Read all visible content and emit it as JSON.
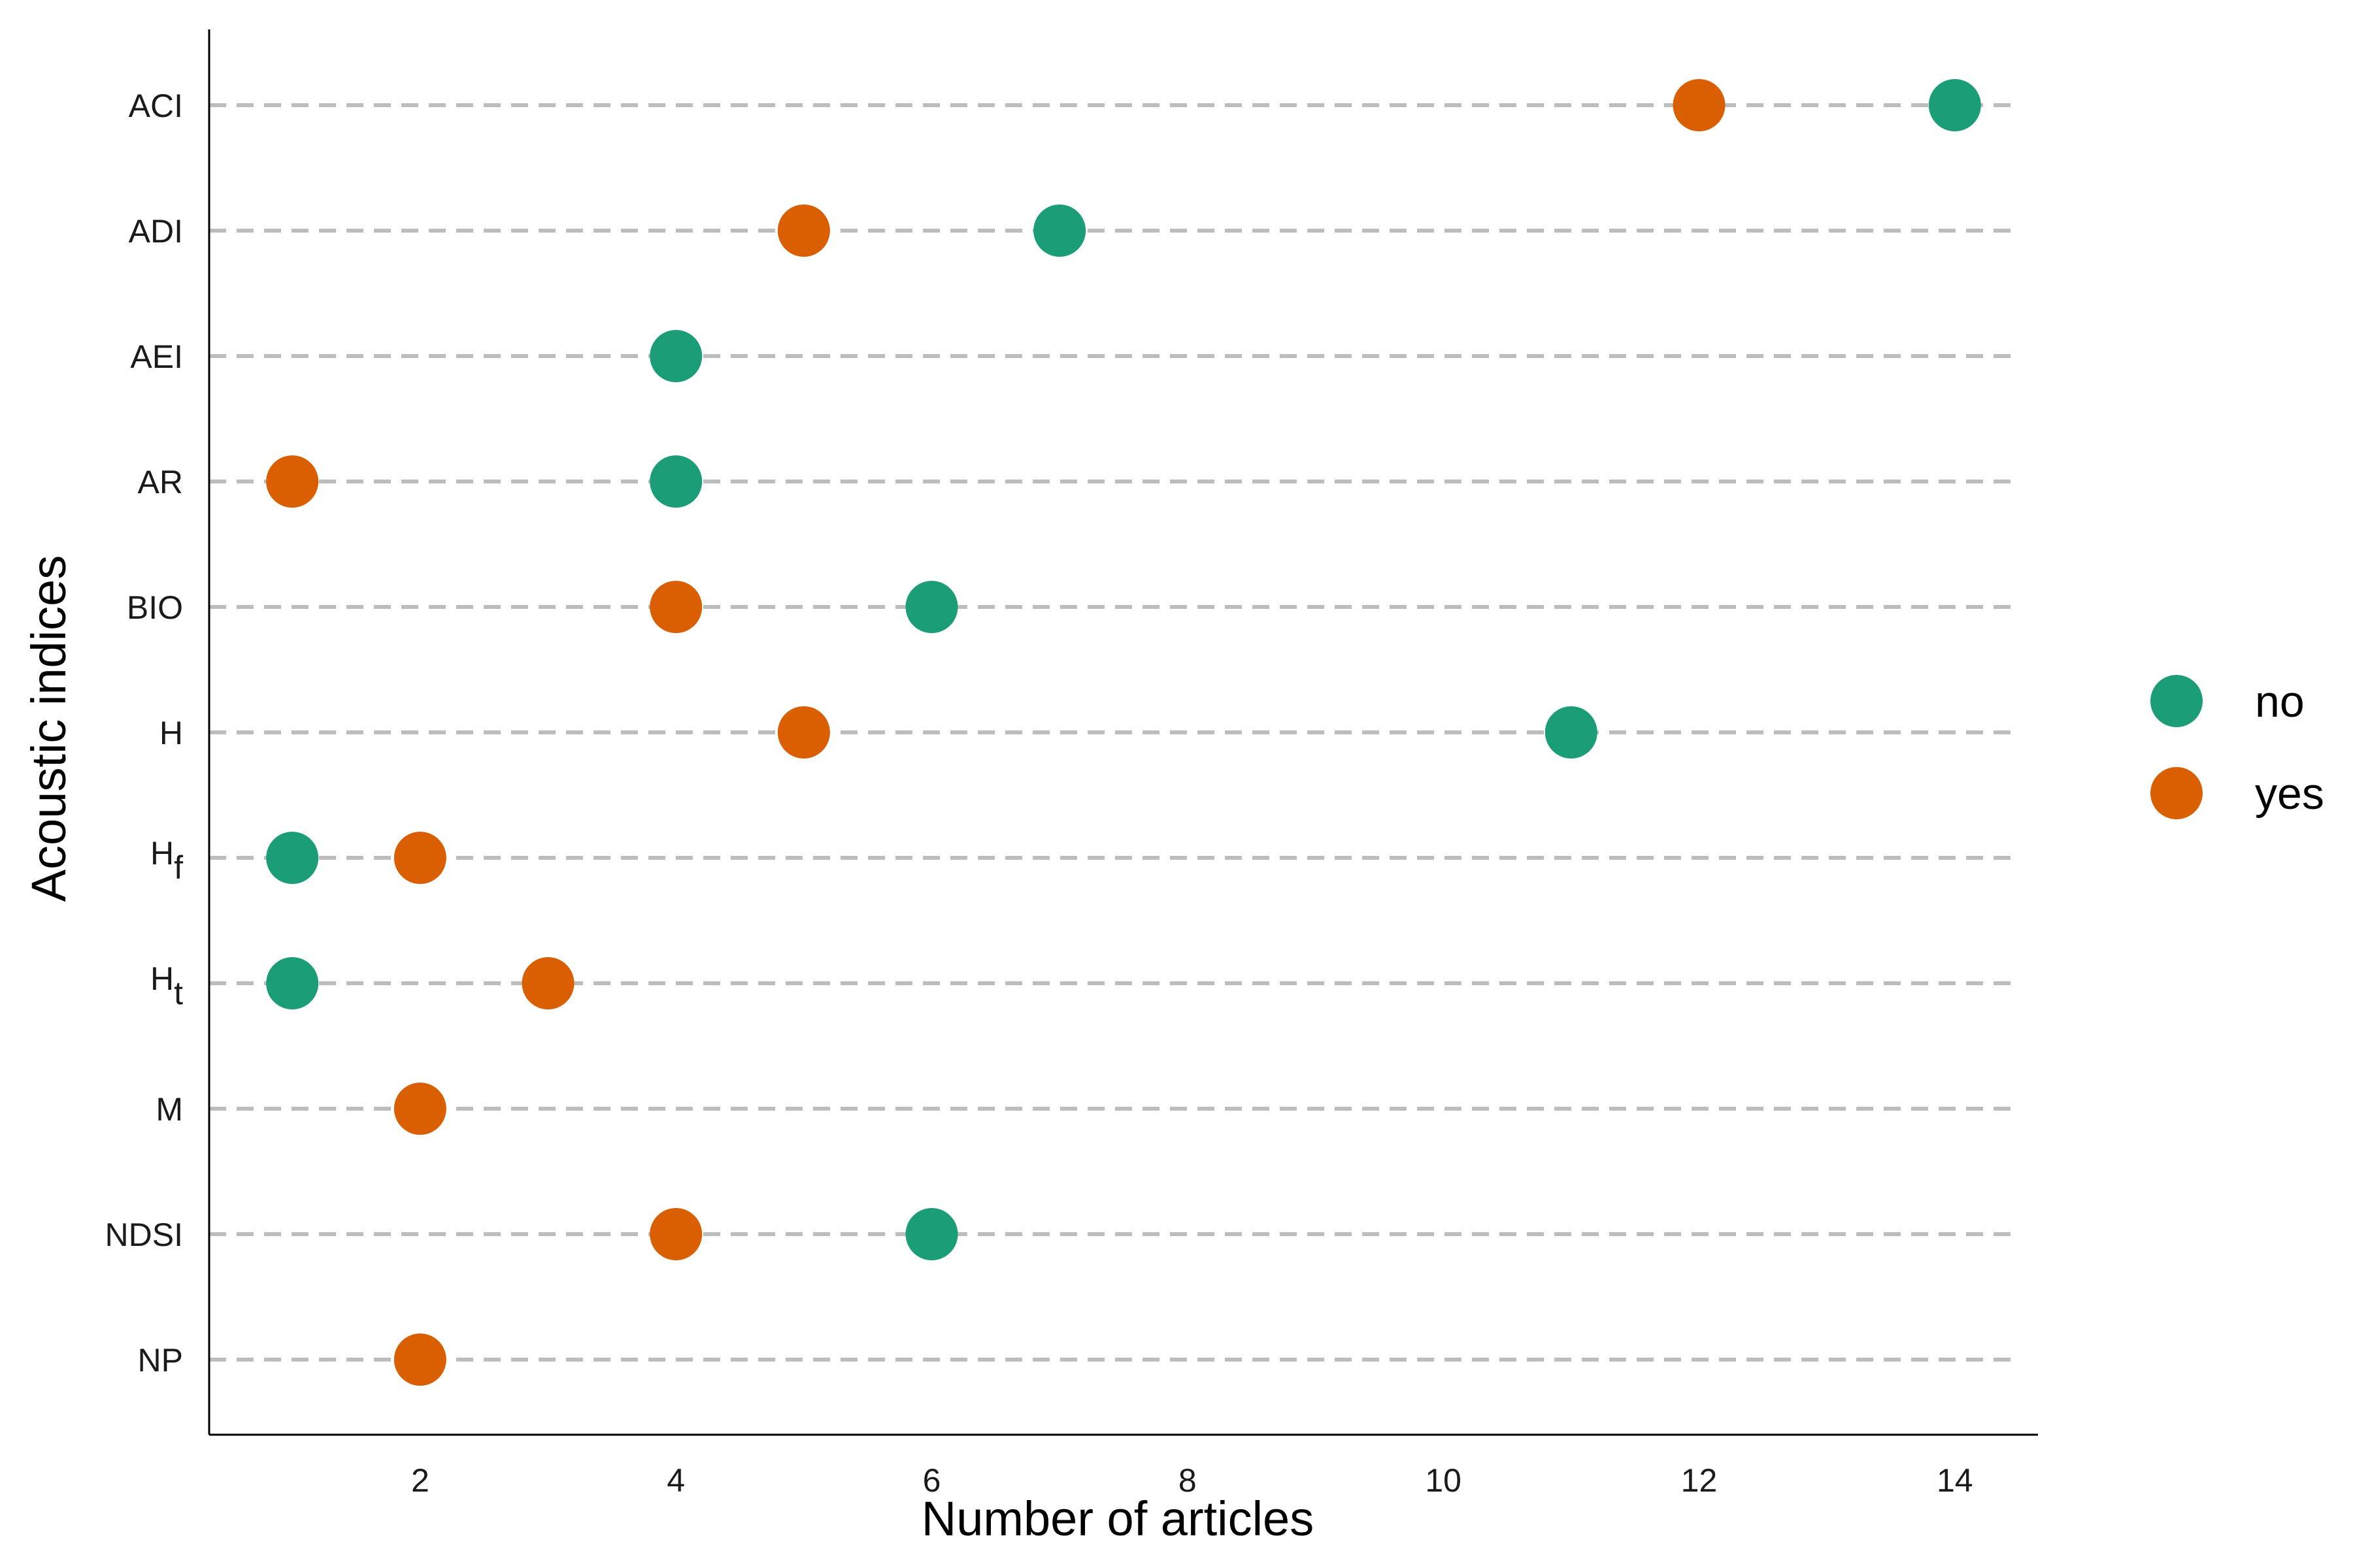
{
  "chart_data": {
    "type": "scatter",
    "xlabel": "Number of articles",
    "ylabel": "Acoustic indices",
    "xlim": [
      0.35,
      14.65
    ],
    "x_ticks": [
      2,
      4,
      6,
      8,
      10,
      12,
      14
    ],
    "categories": [
      {
        "base": "ACI",
        "sub": ""
      },
      {
        "base": "ADI",
        "sub": ""
      },
      {
        "base": "AEI",
        "sub": ""
      },
      {
        "base": "AR",
        "sub": ""
      },
      {
        "base": "BIO",
        "sub": ""
      },
      {
        "base": "H",
        "sub": ""
      },
      {
        "base": "H",
        "sub": "f"
      },
      {
        "base": "H",
        "sub": "t"
      },
      {
        "base": "M",
        "sub": ""
      },
      {
        "base": "NDSI",
        "sub": ""
      },
      {
        "base": "NP",
        "sub": ""
      }
    ],
    "series": [
      {
        "name": "no",
        "color": "#1b9e77",
        "values": [
          14,
          7,
          4,
          4,
          6,
          11,
          1,
          1,
          null,
          6,
          null
        ]
      },
      {
        "name": "yes",
        "color": "#d95f02",
        "values": [
          12,
          5,
          null,
          1,
          4,
          5,
          2,
          3,
          2,
          4,
          2
        ]
      }
    ],
    "gridlines": "dashed horizontal",
    "legend_position": "right"
  }
}
